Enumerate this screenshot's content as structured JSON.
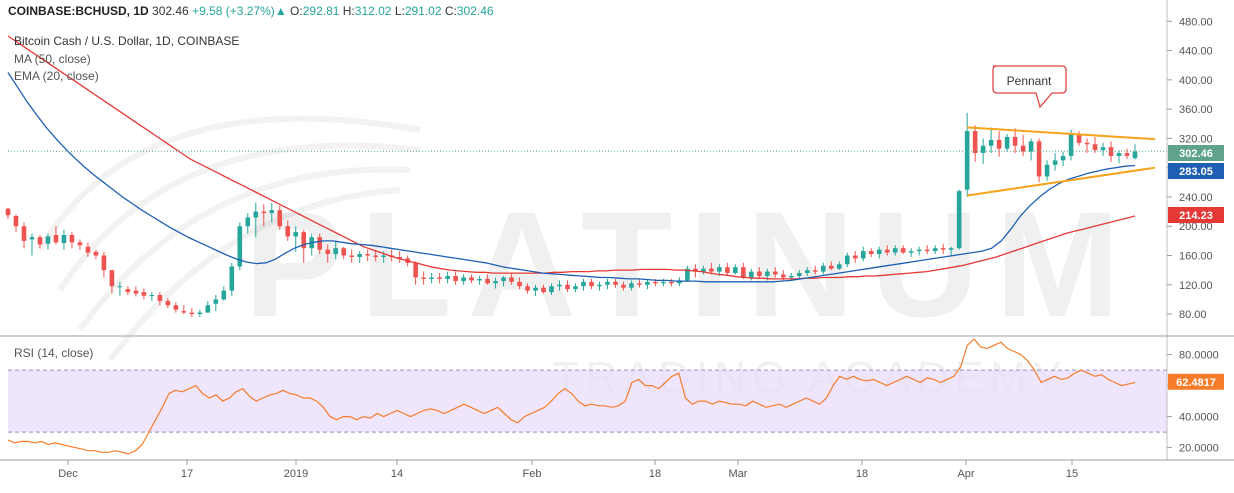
{
  "header": {
    "symbol": "COINBASE:BCHUSD, 1D",
    "last": "302.46",
    "change": "+9.58 (+3.27%)",
    "open_label": "O:",
    "open": "292.81",
    "high_label": "H:",
    "high": "312.02",
    "low_label": "L:",
    "low": "291.02",
    "close_label": "C:",
    "close": "302.46"
  },
  "legends": {
    "title": "Bitcoin Cash / U.S. Dollar, 1D, COINBASE",
    "ma": "MA (50, close)",
    "ema": "EMA (20, close)",
    "rsi": "RSI (14, close)"
  },
  "watermark": {
    "main": "PLATINUM",
    "sub": "TRADING ACADEMY"
  },
  "annotation": {
    "pennant": "Pennant"
  },
  "colors": {
    "up": "#26a69a",
    "down": "#ef5350",
    "ma": "#e53935",
    "ema": "#1e5fb4",
    "trendline": "#f7a21b",
    "rsi": "#f57c2a",
    "rsi_band": "#e9dcfb",
    "last_price_badge": "#5fa38b",
    "ema_badge": "#1e5fb4",
    "ma_badge": "#e53935",
    "watermark": "#000000"
  },
  "chart_data": [
    {
      "type": "candlestick",
      "title": "Bitcoin Cash / U.S. Dollar, 1D, COINBASE",
      "ylim": [
        50,
        490
      ],
      "y_ticks": [
        "480.00",
        "440.00",
        "400.00",
        "360.00",
        "320.00",
        "280.00",
        "240.00",
        "200.00",
        "160.00",
        "120.00",
        "80.00"
      ],
      "x_ticks": [
        "Dec",
        "17",
        "2019",
        "14",
        "Feb",
        "18",
        "Mar",
        "18",
        "Apr",
        "15"
      ],
      "price_labels": {
        "last": "302.46",
        "ema": "283.05",
        "ma": "214.23"
      },
      "candles_ohlc": [
        [
          224,
          225,
          210,
          215
        ],
        [
          214,
          216,
          192,
          200
        ],
        [
          200,
          205,
          170,
          180
        ],
        [
          182,
          190,
          160,
          185
        ],
        [
          185,
          188,
          170,
          175
        ],
        [
          176,
          190,
          168,
          186
        ],
        [
          188,
          200,
          175,
          178
        ],
        [
          177,
          195,
          168,
          188
        ],
        [
          188,
          192,
          170,
          178
        ],
        [
          178,
          182,
          168,
          174
        ],
        [
          172,
          178,
          158,
          164
        ],
        [
          165,
          168,
          155,
          160
        ],
        [
          160,
          165,
          130,
          140
        ],
        [
          140,
          140,
          108,
          118
        ],
        [
          118,
          124,
          105,
          118
        ],
        [
          114,
          118,
          106,
          110
        ],
        [
          112,
          118,
          104,
          108
        ],
        [
          110,
          115,
          100,
          105
        ],
        [
          105,
          110,
          98,
          106
        ],
        [
          106,
          110,
          92,
          98
        ],
        [
          98,
          102,
          88,
          92
        ],
        [
          92,
          96,
          82,
          86
        ],
        [
          84,
          92,
          80,
          82
        ],
        [
          82,
          88,
          76,
          80
        ],
        [
          80,
          86,
          76,
          82
        ],
        [
          82,
          98,
          82,
          92
        ],
        [
          94,
          106,
          84,
          100
        ],
        [
          100,
          118,
          98,
          112
        ],
        [
          112,
          150,
          105,
          145
        ],
        [
          145,
          205,
          140,
          200
        ],
        [
          200,
          218,
          190,
          212
        ],
        [
          212,
          232,
          185,
          220
        ],
        [
          220,
          230,
          200,
          218
        ],
        [
          218,
          232,
          205,
          222
        ],
        [
          222,
          228,
          195,
          200
        ],
        [
          200,
          208,
          180,
          186
        ],
        [
          186,
          200,
          165,
          192
        ],
        [
          192,
          195,
          150,
          170
        ],
        [
          170,
          190,
          160,
          185
        ],
        [
          185,
          190,
          162,
          168
        ],
        [
          168,
          175,
          150,
          162
        ],
        [
          162,
          180,
          155,
          170
        ],
        [
          170,
          172,
          155,
          160
        ],
        [
          160,
          168,
          150,
          158
        ],
        [
          158,
          166,
          150,
          162
        ],
        [
          162,
          168,
          152,
          160
        ],
        [
          160,
          168,
          152,
          158
        ],
        [
          158,
          166,
          150,
          160
        ],
        [
          160,
          168,
          152,
          158
        ],
        [
          158,
          166,
          150,
          156
        ],
        [
          156,
          160,
          145,
          150
        ],
        [
          150,
          152,
          120,
          130
        ],
        [
          130,
          138,
          120,
          128
        ],
        [
          128,
          136,
          122,
          130
        ],
        [
          130,
          136,
          122,
          128
        ],
        [
          128,
          138,
          122,
          132
        ],
        [
          132,
          138,
          120,
          125
        ],
        [
          125,
          134,
          120,
          130
        ],
        [
          130,
          134,
          122,
          126
        ],
        [
          126,
          132,
          120,
          128
        ],
        [
          128,
          134,
          120,
          122
        ],
        [
          122,
          130,
          115,
          125
        ],
        [
          125,
          132,
          118,
          130
        ],
        [
          130,
          136,
          120,
          124
        ],
        [
          124,
          130,
          114,
          118
        ],
        [
          118,
          122,
          108,
          112
        ],
        [
          112,
          120,
          105,
          116
        ],
        [
          116,
          120,
          108,
          110
        ],
        [
          110,
          122,
          106,
          118
        ],
        [
          118,
          126,
          112,
          120
        ],
        [
          120,
          126,
          110,
          114
        ],
        [
          114,
          122,
          110,
          118
        ],
        [
          118,
          128,
          112,
          124
        ],
        [
          124,
          128,
          114,
          118
        ],
        [
          118,
          124,
          112,
          120
        ],
        [
          120,
          128,
          114,
          124
        ],
        [
          124,
          128,
          116,
          120
        ],
        [
          120,
          124,
          112,
          116
        ],
        [
          116,
          126,
          112,
          122
        ],
        [
          122,
          128,
          116,
          120
        ],
        [
          120,
          128,
          114,
          124
        ],
        [
          124,
          128,
          118,
          122
        ],
        [
          122,
          128,
          118,
          124
        ],
        [
          124,
          128,
          118,
          122
        ],
        [
          122,
          130,
          118,
          126
        ],
        [
          126,
          146,
          124,
          142
        ],
        [
          142,
          148,
          130,
          138
        ],
        [
          138,
          146,
          134,
          142
        ],
        [
          142,
          150,
          134,
          138
        ],
        [
          138,
          148,
          132,
          144
        ],
        [
          144,
          150,
          134,
          136
        ],
        [
          136,
          148,
          134,
          144
        ],
        [
          144,
          150,
          128,
          130
        ],
        [
          130,
          142,
          126,
          138
        ],
        [
          138,
          144,
          128,
          132
        ],
        [
          132,
          142,
          126,
          138
        ],
        [
          138,
          144,
          130,
          134
        ],
        [
          134,
          140,
          126,
          130
        ],
        [
          130,
          136,
          126,
          132
        ],
        [
          132,
          140,
          128,
          136
        ],
        [
          136,
          144,
          132,
          140
        ],
        [
          140,
          146,
          134,
          138
        ],
        [
          138,
          150,
          134,
          146
        ],
        [
          146,
          152,
          140,
          142
        ],
        [
          142,
          152,
          140,
          148
        ],
        [
          148,
          164,
          144,
          160
        ],
        [
          160,
          166,
          150,
          156
        ],
        [
          156,
          172,
          152,
          166
        ],
        [
          166,
          170,
          158,
          162
        ],
        [
          162,
          172,
          156,
          168
        ],
        [
          168,
          174,
          160,
          164
        ],
        [
          164,
          174,
          160,
          170
        ],
        [
          170,
          174,
          162,
          164
        ],
        [
          164,
          170,
          158,
          166
        ],
        [
          166,
          172,
          160,
          168
        ],
        [
          168,
          174,
          162,
          166
        ],
        [
          166,
          174,
          162,
          170
        ],
        [
          170,
          176,
          162,
          168
        ],
        [
          168,
          172,
          160,
          170
        ],
        [
          170,
          250,
          168,
          248
        ],
        [
          250,
          355,
          240,
          330
        ],
        [
          330,
          338,
          288,
          300
        ],
        [
          300,
          320,
          285,
          310
        ],
        [
          310,
          335,
          300,
          318
        ],
        [
          318,
          330,
          295,
          306
        ],
        [
          306,
          326,
          302,
          322
        ],
        [
          322,
          334,
          300,
          310
        ],
        [
          310,
          325,
          296,
          302
        ],
        [
          302,
          320,
          290,
          316
        ],
        [
          316,
          320,
          260,
          268
        ],
        [
          268,
          290,
          262,
          284
        ],
        [
          284,
          300,
          276,
          290
        ],
        [
          290,
          302,
          282,
          296
        ],
        [
          296,
          332,
          290,
          326
        ],
        [
          326,
          330,
          310,
          314
        ],
        [
          314,
          320,
          300,
          312
        ],
        [
          312,
          322,
          300,
          304
        ],
        [
          304,
          314,
          296,
          308
        ],
        [
          308,
          316,
          288,
          296
        ],
        [
          296,
          304,
          286,
          300
        ],
        [
          300,
          306,
          292,
          296
        ],
        [
          293,
          312,
          291,
          302
        ]
      ],
      "ma_50": [
        460,
        452,
        444,
        436,
        428,
        420,
        412,
        404,
        396,
        388,
        380,
        372,
        364,
        356,
        348,
        340,
        332,
        324,
        316,
        308,
        300,
        292,
        286,
        280,
        274,
        268,
        262,
        256,
        250,
        244,
        238,
        232,
        226,
        220,
        214,
        208,
        202,
        196,
        190,
        184,
        178,
        172,
        168,
        164,
        160,
        156,
        153,
        150,
        147,
        144,
        142,
        140,
        139,
        138,
        137,
        137,
        136,
        136,
        136,
        136,
        136,
        136,
        136,
        137,
        137,
        138,
        138,
        138,
        139,
        139,
        140,
        140,
        140,
        141,
        141,
        141,
        141,
        140,
        140,
        139,
        138,
        136,
        134,
        133,
        131,
        130,
        129,
        129,
        128,
        128,
        128,
        128,
        129,
        129,
        130,
        130,
        130,
        131,
        131,
        132,
        132,
        133,
        134,
        135,
        136,
        137,
        138,
        140,
        142,
        144,
        146,
        149,
        152,
        155,
        158,
        162,
        166,
        170,
        174,
        178,
        182,
        186,
        190,
        193,
        196,
        199,
        202,
        205,
        208,
        211,
        214
      ],
      "ema_20": [
        410,
        390,
        370,
        352,
        335,
        320,
        306,
        293,
        281,
        270,
        260,
        250,
        240,
        231,
        222,
        214,
        206,
        198,
        191,
        184,
        178,
        172,
        166,
        160,
        155,
        151,
        149,
        150,
        155,
        163,
        170,
        175,
        178,
        180,
        180,
        178,
        176,
        175,
        174,
        172,
        170,
        168,
        166,
        164,
        162,
        160,
        158,
        156,
        154,
        152,
        150,
        147,
        144,
        142,
        140,
        138,
        136,
        135,
        134,
        133,
        132,
        131,
        130,
        130,
        129,
        128,
        128,
        127,
        126,
        126,
        125,
        125,
        125,
        124,
        124,
        124,
        124,
        124,
        124,
        124,
        124,
        125,
        126,
        128,
        130,
        132,
        134,
        136,
        138,
        140,
        142,
        144,
        146,
        148,
        150,
        152,
        154,
        156,
        158,
        160,
        162,
        164,
        166,
        170,
        180,
        196,
        214,
        228,
        240,
        250,
        258,
        264,
        268,
        272,
        275,
        278,
        280,
        282,
        283
      ],
      "pennant_upper": [
        [
          355,
          335
        ],
        [
          472,
          319
        ]
      ],
      "pennant_lower": [
        [
          243,
          242
        ],
        [
          472,
          280
        ]
      ]
    },
    {
      "type": "line",
      "title": "RSI (14, close)",
      "ylim": [
        12,
        92
      ],
      "y_ticks": [
        "80.0000",
        "60.0000",
        "40.0000",
        "20.0000"
      ],
      "bands": [
        30,
        70
      ],
      "last_label": "62.4817",
      "series": [
        {
          "values": [
            25,
            23,
            24,
            24,
            23,
            24,
            22,
            23,
            22,
            21,
            20,
            19,
            18,
            18,
            17,
            17,
            18,
            17,
            16,
            18,
            22,
            30,
            38,
            46,
            55,
            57,
            56,
            58,
            60,
            55,
            52,
            54,
            50,
            52,
            56,
            58,
            53,
            50,
            52,
            54,
            55,
            57,
            55,
            54,
            52,
            52,
            50,
            46,
            40,
            38,
            40,
            40,
            38,
            40,
            39,
            42,
            40,
            42,
            44,
            42,
            40,
            42,
            44,
            45,
            44,
            42,
            44,
            46,
            48,
            46,
            44,
            42,
            44,
            46,
            42,
            38,
            36,
            40,
            42,
            44,
            46,
            50,
            55,
            58,
            55,
            50,
            47,
            48,
            47,
            47,
            46,
            47,
            50,
            62,
            64,
            60,
            60,
            58,
            62,
            66,
            68,
            52,
            48,
            50,
            50,
            48,
            50,
            49,
            48,
            48,
            47,
            50,
            48,
            46,
            47,
            48,
            46,
            48,
            50,
            52,
            50,
            48,
            52,
            60,
            66,
            64,
            66,
            64,
            63,
            64,
            62,
            60,
            62,
            64,
            66,
            64,
            62,
            65,
            64,
            62,
            64,
            66,
            72,
            86,
            90,
            85,
            84,
            86,
            88,
            84,
            82,
            80,
            76,
            70,
            62,
            64,
            66,
            64,
            65,
            68,
            70,
            68,
            66,
            67,
            64,
            62,
            60,
            61,
            62
          ]
        }
      ]
    }
  ]
}
